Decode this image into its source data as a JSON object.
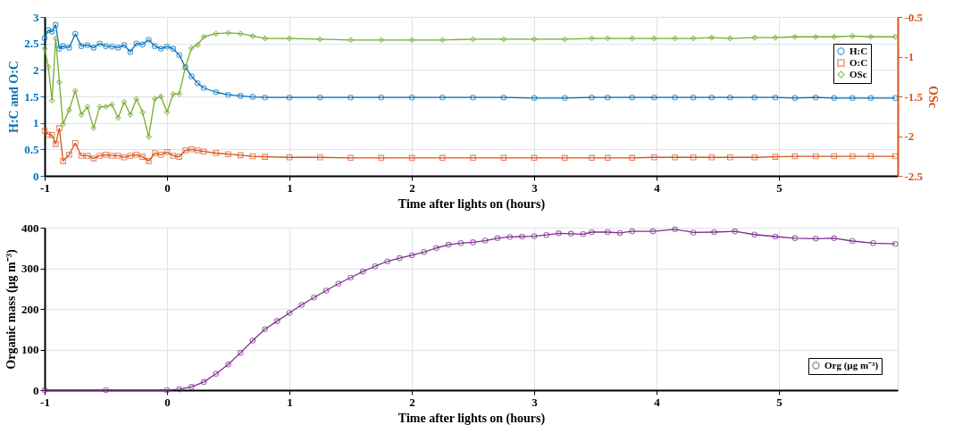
{
  "chart_data": [
    {
      "type": "line",
      "xlabel": "Time after lights on (hours)",
      "ylabel": "H:C and O:C",
      "y2label": "OSc",
      "xlim": [
        -1,
        5.97
      ],
      "xticks": [
        -1,
        0,
        1,
        2,
        3,
        4,
        5
      ],
      "ylim": [
        0,
        3
      ],
      "yticks": [
        0,
        0.5,
        1,
        1.5,
        2,
        2.5,
        3
      ],
      "y2lim": [
        -2.5,
        -0.5
      ],
      "y2ticks": [
        -2.5,
        -2,
        -1.5,
        -1,
        -0.5
      ],
      "grid": true,
      "legend": "top right",
      "line_style": "solid",
      "x": [
        -1.0,
        -0.97,
        -0.94,
        -0.91,
        -0.88,
        -0.85,
        -0.8,
        -0.75,
        -0.7,
        -0.65,
        -0.6,
        -0.55,
        -0.5,
        -0.45,
        -0.4,
        -0.35,
        -0.3,
        -0.25,
        -0.2,
        -0.15,
        -0.1,
        -0.05,
        0,
        0.05,
        0.1,
        0.15,
        0.2,
        0.25,
        0.3,
        0.4,
        0.5,
        0.6,
        0.7,
        0.8,
        1.0,
        1.25,
        1.5,
        1.75,
        2,
        2.25,
        2.5,
        2.75,
        3,
        3.25,
        3.47,
        3.6,
        3.8,
        3.98,
        4.15,
        4.3,
        4.45,
        4.6,
        4.8,
        4.97,
        5.13,
        5.3,
        5.45,
        5.6,
        5.75,
        5.95
      ],
      "series": [
        {
          "name": "H:C",
          "color": "#0072bd",
          "marker": "circle",
          "values": [
            2.6,
            2.75,
            2.72,
            2.85,
            2.4,
            2.45,
            2.42,
            2.68,
            2.45,
            2.47,
            2.42,
            2.5,
            2.45,
            2.44,
            2.42,
            2.47,
            2.34,
            2.5,
            2.48,
            2.57,
            2.45,
            2.4,
            2.44,
            2.4,
            2.28,
            2.05,
            1.88,
            1.75,
            1.66,
            1.58,
            1.53,
            1.51,
            1.49,
            1.48,
            1.48,
            1.48,
            1.48,
            1.48,
            1.48,
            1.48,
            1.48,
            1.48,
            1.47,
            1.47,
            1.48,
            1.48,
            1.48,
            1.48,
            1.48,
            1.48,
            1.48,
            1.48,
            1.48,
            1.48,
            1.47,
            1.48,
            1.47,
            1.47,
            1.47,
            1.47
          ]
        },
        {
          "name": "O:C",
          "color": "#d95319",
          "marker": "square",
          "values": [
            0.85,
            0.78,
            0.77,
            0.6,
            0.9,
            0.28,
            0.4,
            0.62,
            0.38,
            0.38,
            0.33,
            0.38,
            0.4,
            0.38,
            0.38,
            0.35,
            0.38,
            0.4,
            0.36,
            0.28,
            0.43,
            0.4,
            0.45,
            0.38,
            0.36,
            0.48,
            0.5,
            0.48,
            0.46,
            0.43,
            0.41,
            0.39,
            0.37,
            0.36,
            0.35,
            0.35,
            0.34,
            0.34,
            0.34,
            0.34,
            0.34,
            0.34,
            0.34,
            0.34,
            0.34,
            0.34,
            0.34,
            0.35,
            0.35,
            0.35,
            0.35,
            0.35,
            0.35,
            0.36,
            0.37,
            0.37,
            0.37,
            0.37,
            0.37,
            0.37
          ]
        },
        {
          "name": "OSc",
          "color": "#77ac30",
          "marker": "diamond",
          "axis": "y2",
          "values": [
            -0.9,
            -1.13,
            -1.55,
            -0.77,
            -1.32,
            -1.85,
            -1.67,
            -1.43,
            -1.73,
            -1.63,
            -1.9,
            -1.63,
            -1.63,
            -1.6,
            -1.77,
            -1.57,
            -1.73,
            -1.53,
            -1.7,
            -2.01,
            -1.53,
            -1.5,
            -1.7,
            -1.47,
            -1.47,
            -1.13,
            -0.89,
            -0.85,
            -0.75,
            -0.71,
            -0.7,
            -0.71,
            -0.74,
            -0.77,
            -0.77,
            -0.78,
            -0.79,
            -0.79,
            -0.79,
            -0.79,
            -0.78,
            -0.78,
            -0.78,
            -0.78,
            -0.77,
            -0.77,
            -0.77,
            -0.77,
            -0.77,
            -0.77,
            -0.76,
            -0.77,
            -0.76,
            -0.76,
            -0.75,
            -0.75,
            -0.75,
            -0.74,
            -0.75,
            -0.75
          ]
        }
      ]
    },
    {
      "type": "line",
      "xlabel": "Time after lights on (hours)",
      "ylabel": "Organic mass (µg m⁻³)",
      "xlim": [
        -1,
        5.97
      ],
      "xticks": [
        -1,
        0,
        1,
        2,
        3,
        4,
        5
      ],
      "ylim": [
        0,
        400
      ],
      "yticks": [
        0,
        100,
        200,
        300,
        400
      ],
      "grid": true,
      "legend": "bottom right",
      "line_style": "solid",
      "x": [
        -1,
        -0.5,
        0,
        0.1,
        0.2,
        0.3,
        0.4,
        0.5,
        0.6,
        0.7,
        0.8,
        0.9,
        1.0,
        1.1,
        1.2,
        1.3,
        1.4,
        1.5,
        1.6,
        1.7,
        1.8,
        1.9,
        2.0,
        2.1,
        2.2,
        2.3,
        2.4,
        2.5,
        2.6,
        2.7,
        2.8,
        2.9,
        3.0,
        3.1,
        3.2,
        3.3,
        3.4,
        3.47,
        3.6,
        3.7,
        3.8,
        3.97,
        4.15,
        4.3,
        4.47,
        4.64,
        4.8,
        4.97,
        5.13,
        5.3,
        5.45,
        5.6,
        5.77,
        5.95
      ],
      "series": [
        {
          "name": "Org (µg m⁻³)",
          "color": "#7e2f8e",
          "marker": "circle",
          "values": [
            0,
            0,
            0,
            2,
            8,
            20,
            40,
            63,
            92,
            122,
            150,
            170,
            190,
            210,
            228,
            245,
            262,
            277,
            292,
            305,
            317,
            325,
            332,
            340,
            350,
            358,
            362,
            364,
            368,
            374,
            377,
            378,
            379,
            382,
            386,
            385,
            384,
            389,
            389,
            387,
            391,
            391,
            396,
            388,
            389,
            391,
            383,
            378,
            374,
            373,
            374,
            367,
            362,
            360
          ]
        }
      ]
    }
  ]
}
